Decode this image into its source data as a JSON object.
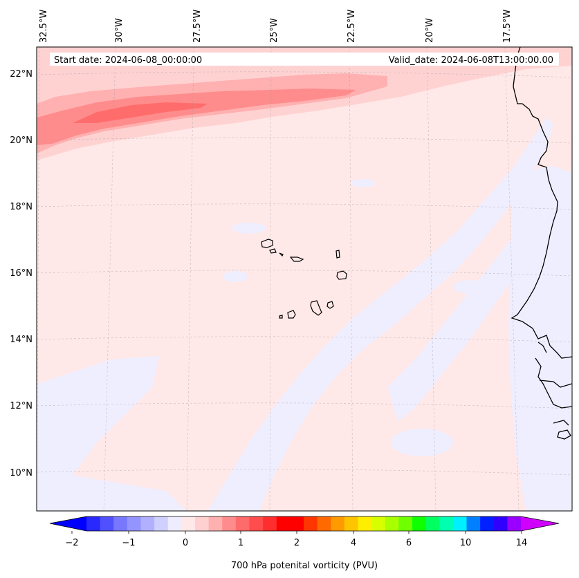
{
  "map": {
    "start_date": "Start date: 2024-06-08_00:00:00",
    "valid_date": "Valid_date: 2024-06-08T13:00:00.00",
    "lon_labels": [
      "32.5°W",
      "30°W",
      "27.5°W",
      "25°W",
      "22.5°W",
      "20°W",
      "17.5°W"
    ],
    "lat_labels": [
      "22°N",
      "20°N",
      "18°N",
      "16°N",
      "14°N",
      "12°N",
      "10°N"
    ]
  },
  "colorbar": {
    "label": "700 hPa potenital vorticity (PVU)",
    "tick_labels": [
      "−2",
      "−1",
      "0",
      "1",
      "2",
      "4",
      "6",
      "10",
      "14"
    ],
    "colors": [
      "#0000ff",
      "#2828ff",
      "#5050ff",
      "#7878ff",
      "#9494ff",
      "#b0b0ff",
      "#d0d0ff",
      "#ededff",
      "#ffe8e8",
      "#ffd0d0",
      "#ffb0b0",
      "#ff8c8c",
      "#ff6a6a",
      "#ff4c4c",
      "#ff2e2e",
      "#ff0000",
      "#ff0000",
      "#ff3600",
      "#ff6a00",
      "#ff9a00",
      "#ffc400",
      "#ffee00",
      "#d8ff00",
      "#a8ff00",
      "#70ff00",
      "#10ff00",
      "#00ff60",
      "#00ffb0",
      "#00f0ff",
      "#0080ff",
      "#0020ff",
      "#3000ff",
      "#9a00ff",
      "#d000ff"
    ]
  },
  "fill_colors": {
    "background": "#ffe8e8",
    "light_blue": "#eeeeff",
    "pink_1": "#ffd2d2",
    "pink_2": "#ffb0b0",
    "pink_3": "#ff8c8c",
    "red_core": "#ff6c6c",
    "coast": "#000000"
  }
}
